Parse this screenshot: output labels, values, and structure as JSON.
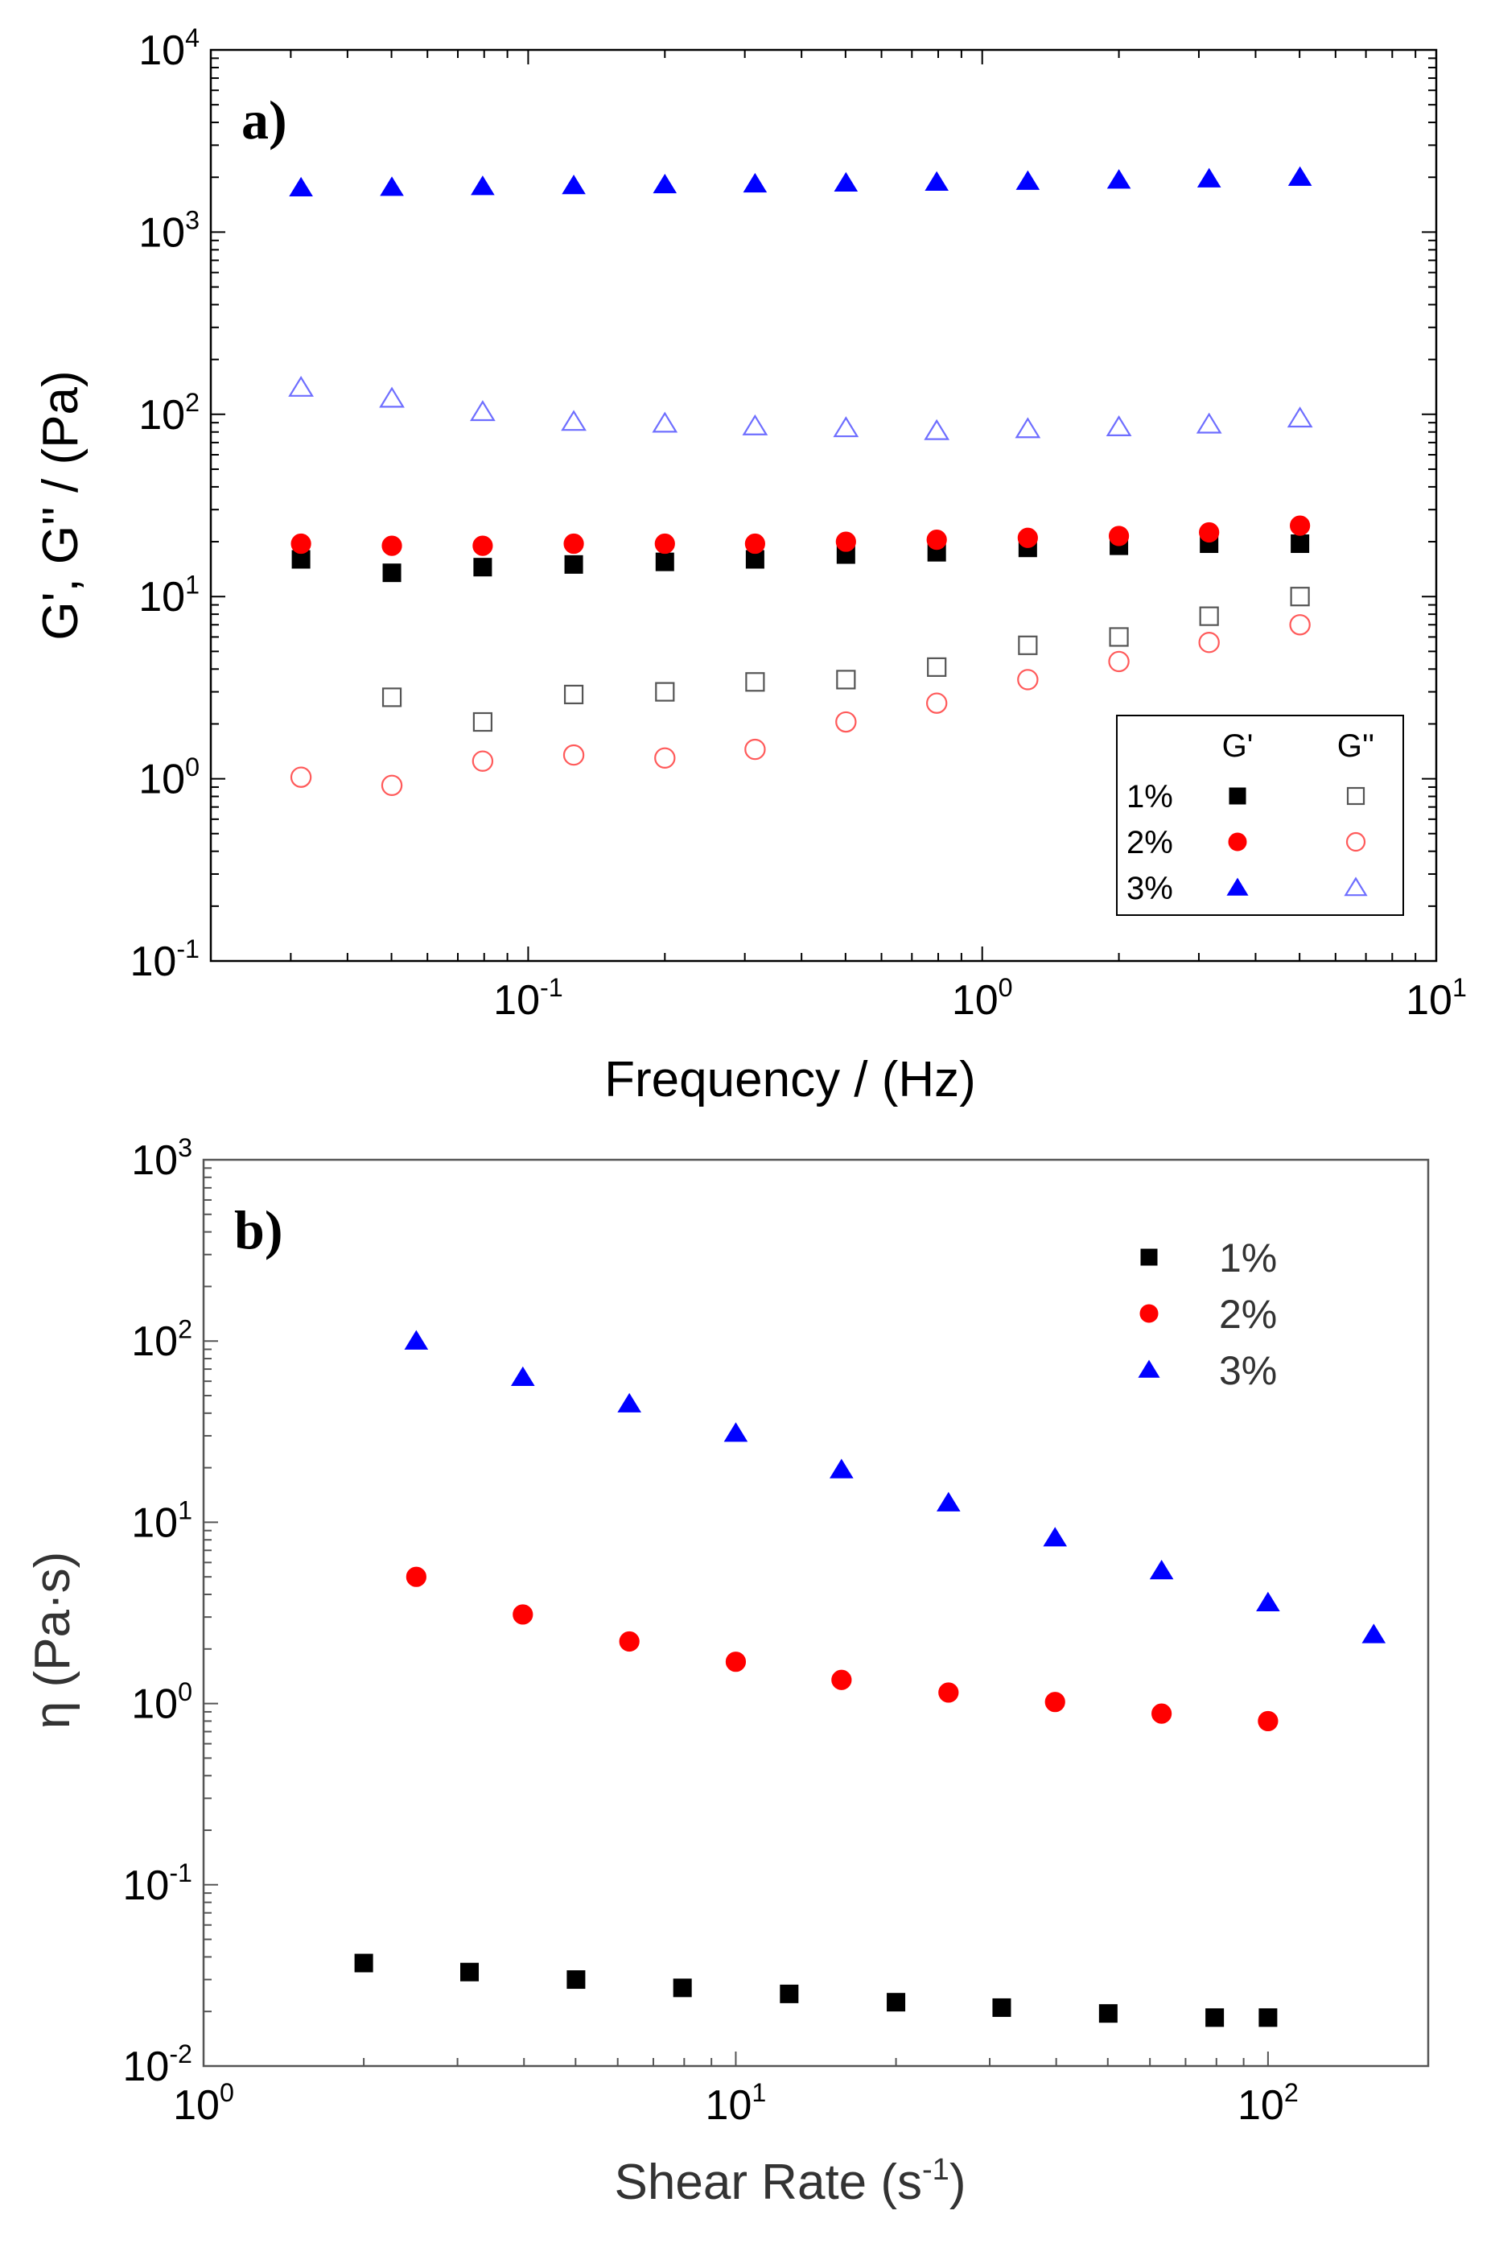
{
  "chart_data": [
    {
      "type": "scatter",
      "panel_label": "a)",
      "xscale": "log",
      "yscale": "log",
      "xlabel": "Frequency / (Hz)",
      "ylabel": "G', G'' / (Pa)",
      "xlim": [
        0.02,
        10
      ],
      "ylim": [
        0.1,
        10000
      ],
      "x_ticks": [
        {
          "base": "10",
          "exp": "-1",
          "value": 0.1
        },
        {
          "base": "10",
          "exp": "0",
          "value": 1
        },
        {
          "base": "10",
          "exp": "1",
          "value": 10
        }
      ],
      "y_ticks": [
        {
          "base": "10",
          "exp": "-1",
          "value": 0.1
        },
        {
          "base": "10",
          "exp": "0",
          "value": 1
        },
        {
          "base": "10",
          "exp": "1",
          "value": 10
        },
        {
          "base": "10",
          "exp": "2",
          "value": 100
        },
        {
          "base": "10",
          "exp": "3",
          "value": 1000
        },
        {
          "base": "10",
          "exp": "4",
          "value": 10000
        }
      ],
      "legend": {
        "position": "lower-right",
        "boxed": true,
        "col_headers": [
          "G'",
          "G''"
        ],
        "rows": [
          "1%",
          "2%",
          "3%"
        ]
      },
      "x": [
        0.0316,
        0.0501,
        0.0794,
        0.126,
        0.2,
        0.316,
        0.501,
        0.794,
        1.26,
        2.0,
        3.16,
        5.01
      ],
      "series": [
        {
          "name": "1% G'",
          "marker": "square",
          "filled": true,
          "color": "#000000",
          "values": [
            16,
            13.5,
            14.5,
            15,
            15.5,
            16,
            17,
            17.5,
            18.5,
            19,
            19.5,
            19.5
          ]
        },
        {
          "name": "1% G''",
          "marker": "square",
          "filled": false,
          "color": "#555555",
          "x": [
            0.0501,
            0.0794,
            0.126,
            0.2,
            0.316,
            0.501,
            0.794,
            1.26,
            2.0,
            3.16,
            5.01
          ],
          "values": [
            2.8,
            2.05,
            2.9,
            3.0,
            3.4,
            3.5,
            4.1,
            5.4,
            6.0,
            7.8,
            10.0
          ]
        },
        {
          "name": "2% G'",
          "marker": "circle",
          "filled": true,
          "color": "#ff0000",
          "values": [
            19.5,
            19,
            19,
            19.5,
            19.5,
            19.5,
            20,
            20.5,
            21,
            21.5,
            22.5,
            24.5
          ]
        },
        {
          "name": "2% G''",
          "marker": "circle",
          "filled": false,
          "color": "#ff5a5a",
          "values": [
            1.02,
            0.92,
            1.25,
            1.35,
            1.3,
            1.45,
            2.05,
            2.6,
            3.5,
            4.4,
            5.6,
            7.0
          ]
        },
        {
          "name": "3% G'",
          "marker": "triangle",
          "filled": true,
          "color": "#0000ff",
          "values": [
            1750,
            1760,
            1780,
            1800,
            1820,
            1840,
            1860,
            1880,
            1900,
            1930,
            1960,
            2000
          ]
        },
        {
          "name": "3% G''",
          "marker": "triangle",
          "filled": false,
          "color": "#6e6eff",
          "values": [
            140,
            122,
            103,
            91,
            89,
            86,
            84,
            81,
            83,
            85,
            88,
            95
          ]
        }
      ]
    },
    {
      "type": "scatter",
      "panel_label": "b)",
      "xscale": "log",
      "yscale": "log",
      "xlabel": "Shear Rate (s-1)",
      "xlabel_main": "Shear Rate (s",
      "xlabel_sup": "-1",
      "xlabel_close": ")",
      "ylabel": "η (Pa·s)",
      "xlim": [
        1,
        200
      ],
      "ylim": [
        0.01,
        1000
      ],
      "x_ticks": [
        {
          "base": "10",
          "exp": "0",
          "value": 1
        },
        {
          "base": "10",
          "exp": "1",
          "value": 10
        },
        {
          "base": "10",
          "exp": "2",
          "value": 100
        }
      ],
      "y_ticks": [
        {
          "base": "10",
          "exp": "-2",
          "value": 0.01
        },
        {
          "base": "10",
          "exp": "-1",
          "value": 0.1
        },
        {
          "base": "10",
          "exp": "0",
          "value": 1
        },
        {
          "base": "10",
          "exp": "1",
          "value": 10
        },
        {
          "base": "10",
          "exp": "2",
          "value": 100
        },
        {
          "base": "10",
          "exp": "3",
          "value": 1000
        }
      ],
      "legend": {
        "position": "top-right",
        "boxed": false,
        "rows": [
          "1%",
          "2%",
          "3%"
        ]
      },
      "series": [
        {
          "name": "1%",
          "marker": "square",
          "filled": true,
          "color": "#000000",
          "x": [
            2.0,
            3.16,
            5.01,
            7.94,
            12.6,
            20.0,
            31.6,
            50.1,
            79.4,
            100
          ],
          "values": [
            0.037,
            0.033,
            0.03,
            0.027,
            0.025,
            0.0225,
            0.021,
            0.0195,
            0.0185,
            0.0185
          ]
        },
        {
          "name": "2%",
          "marker": "circle",
          "filled": true,
          "color": "#ff0000",
          "x": [
            2.51,
            3.98,
            6.31,
            10.0,
            15.8,
            25.1,
            39.8,
            63.1,
            100
          ],
          "values": [
            5.0,
            3.1,
            2.2,
            1.7,
            1.35,
            1.15,
            1.02,
            0.88,
            0.8
          ]
        },
        {
          "name": "3%",
          "marker": "triangle",
          "filled": true,
          "color": "#0000ff",
          "x": [
            2.51,
            3.98,
            6.31,
            10.0,
            15.8,
            25.1,
            39.8,
            63.1,
            100,
            158
          ],
          "values": [
            100,
            63,
            45,
            31,
            19.5,
            12.8,
            8.2,
            5.4,
            3.6,
            2.4
          ]
        }
      ]
    }
  ]
}
